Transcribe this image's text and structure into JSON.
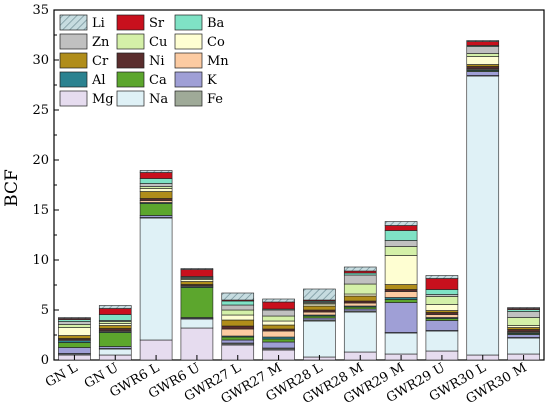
{
  "chart_data": {
    "type": "bar",
    "stacked": true,
    "ylabel": "BCF",
    "xlabel": "",
    "ylim": [
      0,
      35
    ],
    "yticks": [
      0,
      5,
      10,
      15,
      20,
      25,
      30,
      35
    ],
    "grid": false,
    "legend_position": "top-left",
    "categories": [
      "GN L",
      "GN U",
      "GWR6 L",
      "GWR6 U",
      "GWR27 L",
      "GWR27 M",
      "GWR28 L",
      "GWR28 M",
      "GWR29 M",
      "GWR29 U",
      "GWR30 L",
      "GWR30 M"
    ],
    "legend_order": [
      "Li",
      "Sr",
      "Ba",
      "Zn",
      "Cu",
      "Co",
      "Cr",
      "Ni",
      "Mn",
      "Al",
      "Ca",
      "K",
      "Mg",
      "Na",
      "Fe"
    ],
    "series": [
      {
        "name": "Mg",
        "color": "#e6dcef",
        "hatch": false,
        "values": [
          0.5,
          0.5,
          2.0,
          3.2,
          1.5,
          1.0,
          0.3,
          0.8,
          0.6,
          0.9,
          0.5,
          0.6
        ]
      },
      {
        "name": "Na",
        "color": "#dff1f6",
        "hatch": false,
        "values": [
          0.1,
          0.6,
          12.2,
          0.9,
          0.1,
          0.1,
          3.6,
          4.0,
          2.1,
          2.0,
          27.9,
          1.6
        ]
      },
      {
        "name": "Fe",
        "color": "#9faa98",
        "hatch": false,
        "values": [
          0.05,
          0.05,
          0.05,
          0.05,
          0.1,
          0.1,
          0.1,
          0.1,
          0.05,
          0.05,
          0.05,
          0.05
        ]
      },
      {
        "name": "K",
        "color": "#9f9fd6",
        "hatch": false,
        "values": [
          0.6,
          0.2,
          0.2,
          0.1,
          0.3,
          0.6,
          0.2,
          0.2,
          3.0,
          1.0,
          0.4,
          0.3
        ]
      },
      {
        "name": "Ca",
        "color": "#5ca62d",
        "hatch": false,
        "values": [
          0.5,
          1.4,
          1.2,
          3.0,
          0.3,
          0.3,
          0.2,
          0.2,
          0.3,
          0.2,
          0.1,
          0.1
        ]
      },
      {
        "name": "Al",
        "color": "#2b8290",
        "hatch": false,
        "values": [
          0.2,
          0.1,
          0.1,
          0.1,
          0.1,
          0.2,
          0.1,
          0.1,
          0.2,
          0.1,
          0.1,
          0.1
        ]
      },
      {
        "name": "Mn",
        "color": "#fccba2",
        "hatch": false,
        "values": [
          0.1,
          0.1,
          0.2,
          0.1,
          0.7,
          0.6,
          0.3,
          0.3,
          0.6,
          0.3,
          0.1,
          0.1
        ]
      },
      {
        "name": "Ni",
        "color": "#5a2d2d",
        "hatch": false,
        "values": [
          0.1,
          0.2,
          0.2,
          0.1,
          0.3,
          0.2,
          0.2,
          0.2,
          0.2,
          0.2,
          0.2,
          0.2
        ]
      },
      {
        "name": "Cr",
        "color": "#b08d1a",
        "hatch": false,
        "values": [
          0.3,
          0.3,
          0.7,
          0.3,
          0.6,
          0.4,
          0.4,
          0.5,
          0.5,
          0.2,
          0.2,
          0.2
        ]
      },
      {
        "name": "Co",
        "color": "#fefed2",
        "hatch": false,
        "values": [
          0.8,
          0.2,
          0.3,
          0.2,
          0.5,
          0.4,
          0.2,
          0.2,
          2.9,
          0.6,
          0.8,
          0.2
        ]
      },
      {
        "name": "Cu",
        "color": "#d4f0a8",
        "hatch": false,
        "values": [
          0.3,
          0.2,
          0.2,
          0.1,
          0.5,
          0.5,
          0.1,
          1.0,
          0.9,
          0.8,
          0.3,
          0.8
        ]
      },
      {
        "name": "Zn",
        "color": "#c0c0c0",
        "hatch": false,
        "values": [
          0.3,
          0.1,
          0.3,
          0.1,
          0.5,
          0.6,
          0.1,
          0.9,
          0.6,
          0.2,
          0.7,
          0.6
        ]
      },
      {
        "name": "Ba",
        "color": "#7fe2c5",
        "hatch": false,
        "values": [
          0.2,
          0.6,
          0.5,
          0.1,
          0.4,
          0.1,
          0.1,
          0.2,
          1.0,
          0.5,
          0.1,
          0.2
        ]
      },
      {
        "name": "Sr",
        "color": "#c8101d",
        "hatch": false,
        "values": [
          0.1,
          0.6,
          0.6,
          0.7,
          0.1,
          0.7,
          0.1,
          0.2,
          0.5,
          1.1,
          0.4,
          0.1
        ]
      },
      {
        "name": "Li",
        "color": "#c6dce0",
        "hatch": true,
        "values": [
          0.1,
          0.3,
          0.2,
          0.1,
          0.7,
          0.3,
          1.1,
          0.4,
          0.4,
          0.3,
          0.1,
          0.1
        ]
      }
    ]
  }
}
